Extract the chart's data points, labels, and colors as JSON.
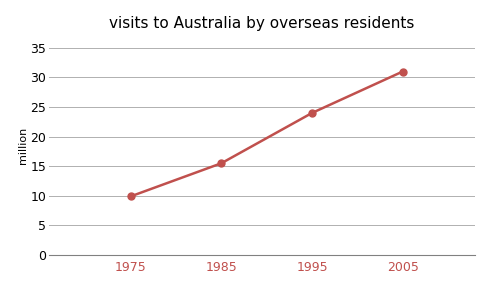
{
  "title": "visits to Australia by overseas residents",
  "x_values": [
    1975,
    1985,
    1995,
    2005
  ],
  "y_values": [
    9.9,
    15.5,
    24.0,
    31.0
  ],
  "x_tick_labels": [
    "1975",
    "1985",
    "1995",
    "2005"
  ],
  "ylabel": "million",
  "ylim": [
    0,
    37
  ],
  "xlim": [
    1966,
    2013
  ],
  "yticks": [
    0,
    5,
    10,
    15,
    20,
    25,
    30,
    35
  ],
  "line_color": "#c0504d",
  "marker": "o",
  "marker_color": "#c0504d",
  "marker_size": 5,
  "line_width": 1.8,
  "background_color": "#ffffff",
  "grid_color": "#b0b0b0",
  "title_fontsize": 11,
  "axis_label_fontsize": 8,
  "tick_label_fontsize": 9,
  "x_tick_label_color": "#c0504d",
  "y_tick_label_color": "#000000",
  "spine_color": "#808080"
}
